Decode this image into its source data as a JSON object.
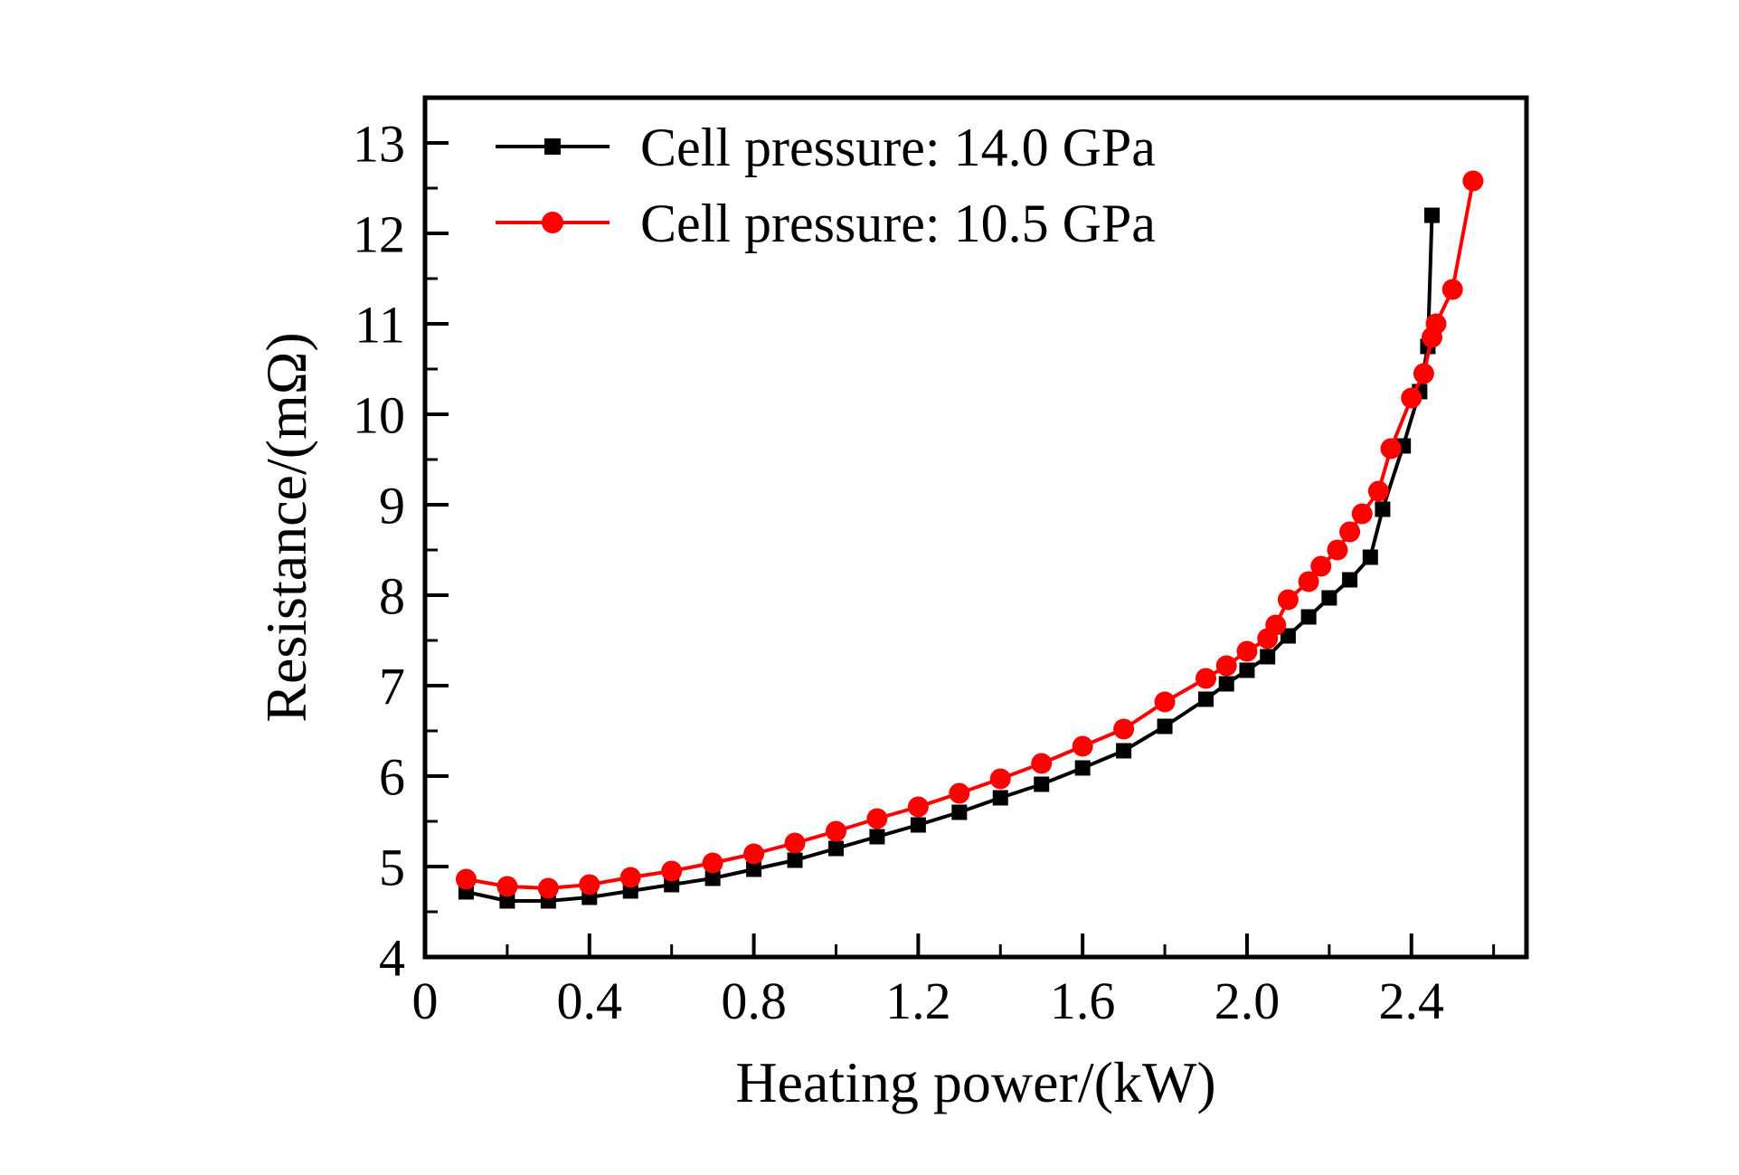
{
  "figure": {
    "background": "#ffffff"
  },
  "colors": {
    "axis": "#000000",
    "series_black": "#000000",
    "series_red": "#ff0000"
  },
  "chart_data": {
    "type": "line",
    "title": "",
    "xlabel": "Heating power/(kW)",
    "ylabel": "Resistance/(mΩ)",
    "xlim": [
      0,
      2.68
    ],
    "ylim": [
      4,
      13.5
    ],
    "grid": false,
    "legend_position": "top-left-inside",
    "x_major_ticks": [
      0,
      0.4,
      0.8,
      1.2,
      1.6,
      2.0,
      2.4
    ],
    "x_tick_labels": [
      "0",
      "0.4",
      "0.8",
      "1.2",
      "1.6",
      "2.0",
      "2.4"
    ],
    "x_minor_step": 0.2,
    "y_major_ticks": [
      4,
      5,
      6,
      7,
      8,
      9,
      10,
      11,
      12,
      13
    ],
    "y_tick_labels": [
      "4",
      "5",
      "6",
      "7",
      "8",
      "9",
      "10",
      "11",
      "12",
      "13"
    ],
    "y_minor_step": 0.5,
    "series": [
      {
        "name": "Cell pressure: 14.0 GPa",
        "color": "#000000",
        "marker": "square",
        "points": [
          [
            0.1,
            4.72
          ],
          [
            0.2,
            4.62
          ],
          [
            0.3,
            4.62
          ],
          [
            0.4,
            4.66
          ],
          [
            0.5,
            4.73
          ],
          [
            0.6,
            4.8
          ],
          [
            0.7,
            4.87
          ],
          [
            0.8,
            4.97
          ],
          [
            0.9,
            5.07
          ],
          [
            1.0,
            5.2
          ],
          [
            1.1,
            5.33
          ],
          [
            1.2,
            5.46
          ],
          [
            1.3,
            5.6
          ],
          [
            1.4,
            5.76
          ],
          [
            1.5,
            5.91
          ],
          [
            1.6,
            6.09
          ],
          [
            1.7,
            6.28
          ],
          [
            1.8,
            6.55
          ],
          [
            1.9,
            6.85
          ],
          [
            1.95,
            7.02
          ],
          [
            2.0,
            7.17
          ],
          [
            2.05,
            7.32
          ],
          [
            2.1,
            7.55
          ],
          [
            2.15,
            7.76
          ],
          [
            2.2,
            7.97
          ],
          [
            2.25,
            8.17
          ],
          [
            2.3,
            8.42
          ],
          [
            2.33,
            8.95
          ],
          [
            2.38,
            9.65
          ],
          [
            2.42,
            10.25
          ],
          [
            2.44,
            10.75
          ],
          [
            2.45,
            12.2
          ]
        ]
      },
      {
        "name": "Cell pressure: 10.5 GPa",
        "color": "#ff0000",
        "marker": "circle",
        "points": [
          [
            0.1,
            4.86
          ],
          [
            0.2,
            4.78
          ],
          [
            0.3,
            4.76
          ],
          [
            0.4,
            4.8
          ],
          [
            0.5,
            4.88
          ],
          [
            0.6,
            4.95
          ],
          [
            0.7,
            5.04
          ],
          [
            0.8,
            5.14
          ],
          [
            0.9,
            5.26
          ],
          [
            1.0,
            5.39
          ],
          [
            1.1,
            5.53
          ],
          [
            1.2,
            5.66
          ],
          [
            1.3,
            5.81
          ],
          [
            1.4,
            5.97
          ],
          [
            1.5,
            6.14
          ],
          [
            1.6,
            6.33
          ],
          [
            1.7,
            6.52
          ],
          [
            1.8,
            6.82
          ],
          [
            1.9,
            7.08
          ],
          [
            1.95,
            7.22
          ],
          [
            2.0,
            7.38
          ],
          [
            2.05,
            7.52
          ],
          [
            2.07,
            7.67
          ],
          [
            2.1,
            7.95
          ],
          [
            2.15,
            8.15
          ],
          [
            2.18,
            8.32
          ],
          [
            2.22,
            8.5
          ],
          [
            2.25,
            8.7
          ],
          [
            2.28,
            8.9
          ],
          [
            2.32,
            9.15
          ],
          [
            2.35,
            9.62
          ],
          [
            2.4,
            10.18
          ],
          [
            2.43,
            10.45
          ],
          [
            2.45,
            10.85
          ],
          [
            2.46,
            11.0
          ],
          [
            2.5,
            11.38
          ],
          [
            2.55,
            12.58
          ]
        ]
      }
    ]
  }
}
